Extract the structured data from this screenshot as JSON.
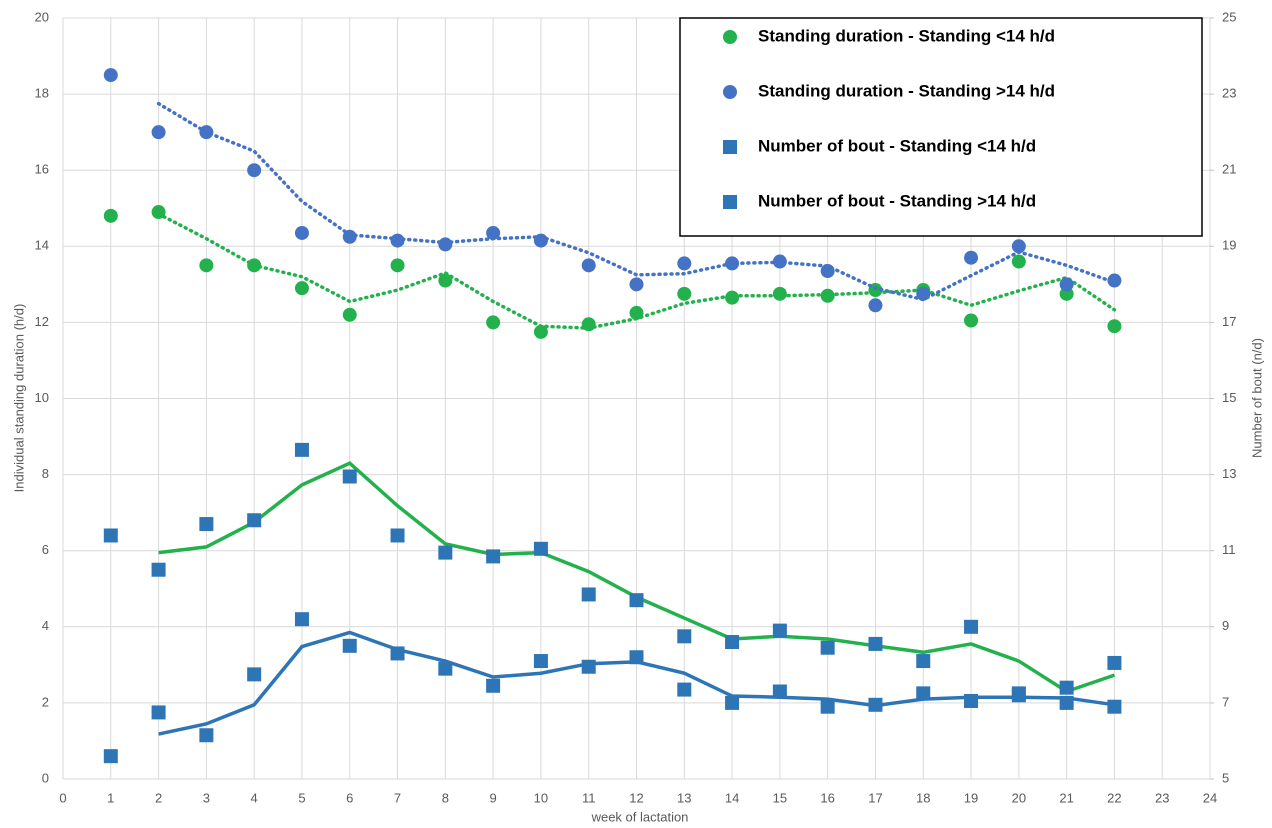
{
  "chart_data": {
    "type": "scatter",
    "x_label": "week of lactation",
    "y_label": "Individual standing duration (h/d)",
    "y2_label": "Number of bout (n/d)",
    "x": [
      1,
      2,
      3,
      4,
      5,
      6,
      7,
      8,
      9,
      10,
      11,
      12,
      13,
      14,
      15,
      16,
      17,
      18,
      19,
      20,
      21,
      22
    ],
    "xlim": [
      0,
      24
    ],
    "xticks": [
      0,
      1,
      2,
      3,
      4,
      5,
      6,
      7,
      8,
      9,
      10,
      11,
      12,
      13,
      14,
      15,
      16,
      17,
      18,
      19,
      20,
      21,
      22,
      23,
      24
    ],
    "ylim": [
      0,
      20
    ],
    "yticks": [
      0,
      2,
      4,
      6,
      8,
      10,
      12,
      14,
      16,
      18,
      20
    ],
    "y2lim": [
      5,
      25
    ],
    "y2ticks": [
      5,
      7,
      9,
      11,
      13,
      15,
      17,
      19,
      21,
      23,
      25
    ],
    "grid": true,
    "legend": "upper right",
    "series": [
      {
        "name": "Standing duration - Standing <14 h/d",
        "color": "#22b14c",
        "marker": "circle",
        "axis": "y",
        "values": [
          14.8,
          14.9,
          13.5,
          13.5,
          12.9,
          12.2,
          13.5,
          13.1,
          12.0,
          11.75,
          11.95,
          12.25,
          12.75,
          12.65,
          12.75,
          12.7,
          12.85,
          12.85,
          12.05,
          13.6,
          12.75,
          11.9
        ],
        "trend": [
          null,
          14.85,
          14.2,
          13.5,
          13.2,
          12.55,
          12.85,
          13.3,
          12.55,
          11.9,
          11.85,
          12.1,
          12.5,
          12.7,
          12.7,
          12.73,
          12.78,
          12.85,
          12.45,
          12.83,
          13.18,
          12.33
        ],
        "trend_style": "dotted"
      },
      {
        "name": "Standing duration - Standing >14 h/d",
        "color": "#4472c4",
        "marker": "circle",
        "axis": "y",
        "values": [
          18.5,
          17.0,
          17.0,
          16.0,
          14.35,
          14.25,
          14.15,
          14.05,
          14.35,
          14.15,
          13.5,
          13.0,
          13.55,
          13.55,
          13.6,
          13.35,
          12.45,
          12.75,
          13.7,
          14.0,
          13.0,
          13.1
        ],
        "trend": [
          null,
          17.75,
          17.0,
          16.5,
          15.18,
          14.3,
          14.2,
          14.1,
          14.2,
          14.25,
          13.83,
          13.25,
          13.28,
          13.55,
          13.58,
          13.48,
          12.9,
          12.6,
          13.23,
          13.85,
          13.5,
          13.05
        ],
        "trend_style": "dotted"
      },
      {
        "name": "Number of bout - Standing <14 h/d",
        "color": "#2e75b6",
        "trend_color": "#22b14c",
        "marker": "square",
        "axis": "y2",
        "values": [
          11.4,
          10.5,
          11.7,
          11.8,
          13.65,
          12.95,
          11.4,
          10.95,
          10.85,
          11.05,
          9.85,
          9.7,
          8.75,
          8.6,
          8.9,
          8.45,
          8.55,
          8.1,
          9.0,
          7.2,
          7.4,
          8.05
        ],
        "trend": [
          null,
          10.95,
          11.1,
          11.75,
          12.73,
          13.3,
          12.18,
          11.18,
          10.9,
          10.95,
          10.45,
          9.78,
          9.23,
          8.68,
          8.75,
          8.68,
          8.5,
          8.33,
          8.55,
          8.1,
          7.3,
          7.73
        ],
        "trend_style": "solid"
      },
      {
        "name": "Number of bout - Standing >14 h/d",
        "color": "#2e75b6",
        "trend_color": "#2e75b6",
        "marker": "square",
        "axis": "y2",
        "values": [
          5.6,
          6.75,
          6.15,
          7.75,
          9.2,
          8.5,
          8.3,
          7.9,
          7.45,
          8.1,
          7.95,
          8.2,
          7.35,
          7.0,
          7.3,
          6.9,
          6.95,
          7.25,
          7.05,
          7.25,
          7.0,
          6.9
        ],
        "trend": [
          null,
          6.18,
          6.45,
          6.95,
          8.48,
          8.85,
          8.4,
          8.1,
          7.68,
          7.78,
          8.03,
          8.08,
          7.78,
          7.18,
          7.15,
          7.1,
          6.93,
          7.1,
          7.15,
          7.15,
          7.13,
          6.95
        ],
        "trend_style": "solid"
      }
    ]
  }
}
